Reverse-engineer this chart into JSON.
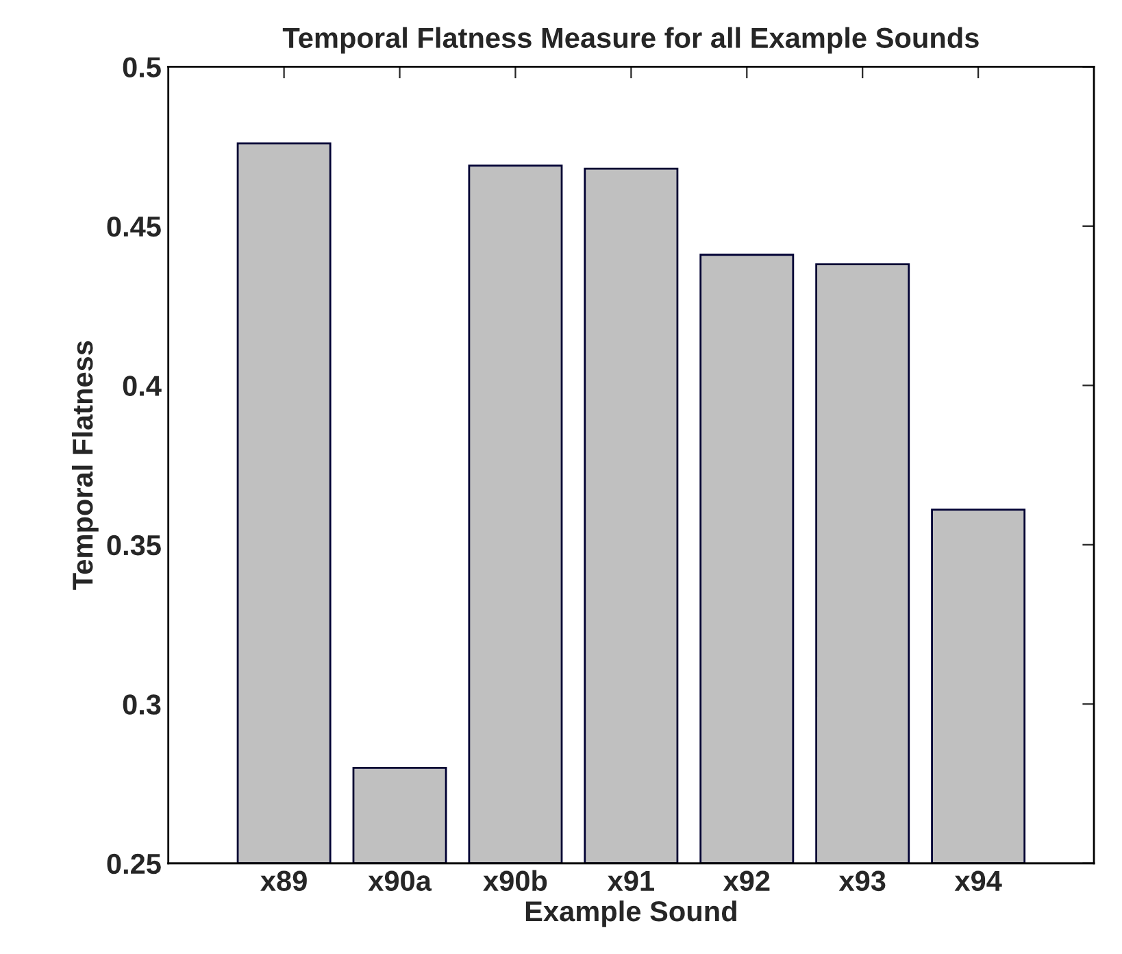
{
  "chart_data": {
    "type": "bar",
    "title": "Temporal Flatness Measure for all Example Sounds",
    "xlabel": "Example Sound",
    "ylabel": "Temporal Flatness",
    "categories": [
      "x89",
      "x90a",
      "x90b",
      "x91",
      "x92",
      "x93",
      "x94"
    ],
    "values": [
      0.476,
      0.28,
      0.469,
      0.468,
      0.441,
      0.438,
      0.361
    ],
    "color": "#c0c0c0",
    "ylim": [
      0.25,
      0.5
    ],
    "yticks": [
      0.25,
      0.3,
      0.35,
      0.4,
      0.45,
      0.5
    ],
    "grid": false,
    "legend": false
  }
}
